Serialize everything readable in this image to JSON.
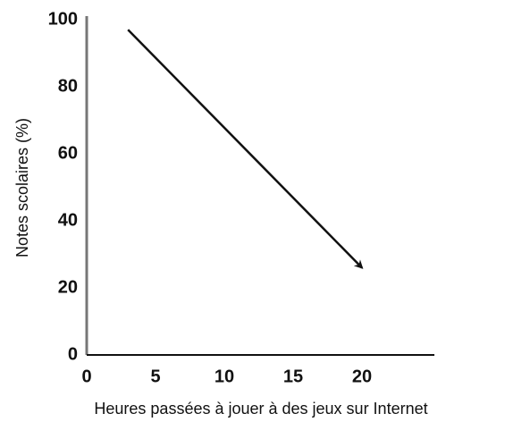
{
  "chart_data": {
    "type": "line",
    "xlabel": "Heures passées à jouer à des jeux sur Internet",
    "ylabel": "Notes scolaires (%)",
    "x": [
      3,
      20
    ],
    "series": [
      {
        "color": "#111111",
        "values": [
          97,
          26
        ]
      }
    ],
    "xlim": [
      0,
      25
    ],
    "xticks": [
      0,
      5,
      10,
      15,
      20
    ],
    "ylim": [
      0,
      100
    ],
    "yticks": [
      0,
      20,
      40,
      60,
      80,
      100
    ],
    "grid": false
  }
}
